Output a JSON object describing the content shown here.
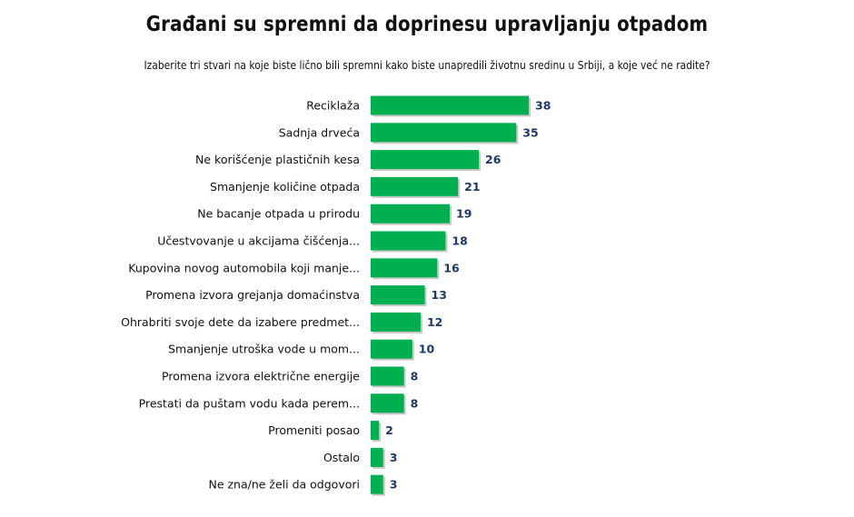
{
  "chart_data": {
    "type": "bar",
    "orientation": "horizontal",
    "title": "Građani su spremni da doprinesu upravljanju otpadom",
    "subtitle": "Izaberite tri stvari na koje biste lično bili spremni  kako biste unapredili životnu sredinu u Srbiji, a koje već ne radite?",
    "categories": [
      "Reciklaža",
      "Sadnja drveća",
      "Ne korišćenje plastičnih kesa",
      "Smanjenje količine otpada",
      "Ne bacanje otpada u prirodu",
      "Učestvovanje u akcijama čišćenja...",
      "Kupovina novog automobila koji manje...",
      "Promena izvora grejanja domaćinstva",
      "Ohrabriti svoje dete da izabere predmet...",
      "Smanjenje utroška vode u mom...",
      "Promena izvora električne energije",
      "Prestati da puštam vodu kada perem...",
      "Promeniti posao",
      "Ostalo",
      "Ne zna/ne želi da odgovori"
    ],
    "values": [
      38,
      35,
      26,
      21,
      19,
      18,
      16,
      13,
      12,
      10,
      8,
      8,
      2,
      3,
      3
    ],
    "xlim": [
      0,
      38
    ],
    "grid": false,
    "data_labels": true,
    "colors": {
      "bar": "#00b050",
      "value_label": "#1f3864"
    }
  }
}
